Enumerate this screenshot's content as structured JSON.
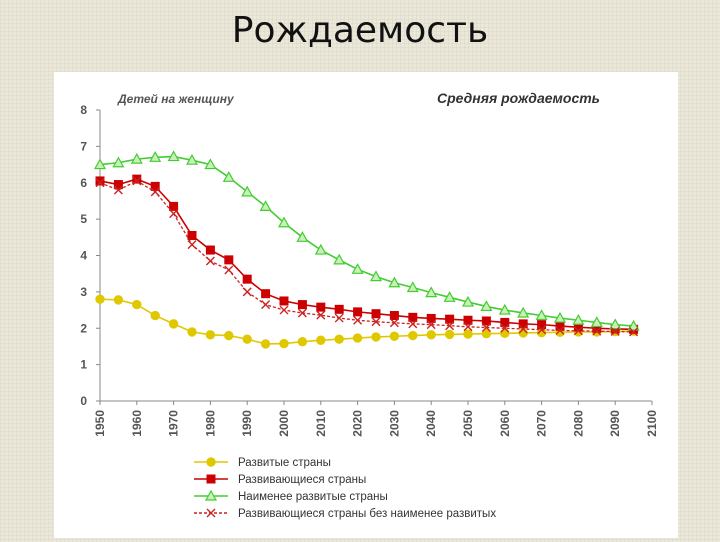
{
  "slide": {
    "title": "Рождаемость"
  },
  "chart_data": {
    "type": "line",
    "title": "Средняя рождаемость",
    "ylabel": "Детей на женщину",
    "xlabel": "",
    "xlim": [
      1950,
      2100
    ],
    "ylim": [
      0,
      8
    ],
    "x_ticks": [
      1950,
      1960,
      1970,
      1980,
      1990,
      2000,
      2010,
      2020,
      2030,
      2040,
      2050,
      2060,
      2070,
      2080,
      2090,
      2100
    ],
    "y_ticks": [
      0,
      1,
      2,
      3,
      4,
      5,
      6,
      7,
      8
    ],
    "grid": "none",
    "legend_placement": "bottom",
    "x": [
      1950,
      1955,
      1960,
      1965,
      1970,
      1975,
      1980,
      1985,
      1990,
      1995,
      2000,
      2005,
      2010,
      2015,
      2020,
      2025,
      2030,
      2035,
      2040,
      2045,
      2050,
      2055,
      2060,
      2065,
      2070,
      2075,
      2080,
      2085,
      2090,
      2095
    ],
    "series": [
      {
        "name": "Развитые страны",
        "color": "#e0c800",
        "marker": "circle",
        "values": [
          2.8,
          2.78,
          2.65,
          2.35,
          2.12,
          1.9,
          1.82,
          1.8,
          1.7,
          1.57,
          1.58,
          1.63,
          1.67,
          1.7,
          1.73,
          1.76,
          1.78,
          1.8,
          1.82,
          1.83,
          1.84,
          1.85,
          1.86,
          1.87,
          1.88,
          1.89,
          1.9,
          1.9,
          1.91,
          1.92
        ]
      },
      {
        "name": "Развивающиеся страны",
        "color": "#cc0000",
        "marker": "square",
        "values": [
          6.05,
          5.95,
          6.1,
          5.9,
          5.35,
          4.55,
          4.15,
          3.88,
          3.35,
          2.95,
          2.75,
          2.65,
          2.58,
          2.52,
          2.45,
          2.4,
          2.35,
          2.3,
          2.27,
          2.25,
          2.22,
          2.2,
          2.16,
          2.12,
          2.1,
          2.06,
          2.03,
          2.0,
          1.98,
          1.97
        ]
      },
      {
        "name": "Наименее развитые страны",
        "color": "#44cc33",
        "marker": "triangle",
        "values": [
          6.5,
          6.55,
          6.65,
          6.7,
          6.72,
          6.62,
          6.5,
          6.15,
          5.75,
          5.35,
          4.9,
          4.5,
          4.15,
          3.88,
          3.62,
          3.42,
          3.25,
          3.12,
          2.98,
          2.85,
          2.72,
          2.6,
          2.5,
          2.42,
          2.35,
          2.28,
          2.22,
          2.16,
          2.1,
          2.06
        ]
      },
      {
        "name": "Развивающиеся  страны без наименее развитых",
        "color": "#cc2222",
        "marker": "cross",
        "dashed": true,
        "values": [
          6.0,
          5.8,
          6.05,
          5.75,
          5.15,
          4.3,
          3.85,
          3.6,
          3.0,
          2.65,
          2.5,
          2.42,
          2.36,
          2.28,
          2.22,
          2.18,
          2.15,
          2.12,
          2.1,
          2.07,
          2.04,
          2.02,
          2.0,
          1.98,
          1.96,
          1.94,
          1.93,
          1.92,
          1.91,
          1.9
        ]
      }
    ]
  }
}
